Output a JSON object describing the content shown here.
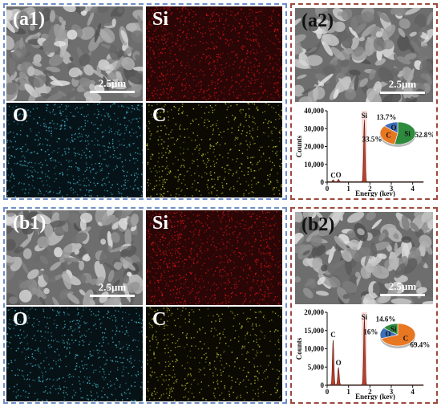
{
  "panels": {
    "a1": {
      "label": "(a1)",
      "scale": "2.5μm"
    },
    "a1_si": {
      "label": "Si"
    },
    "a1_o": {
      "label": "O"
    },
    "a1_c": {
      "label": "C"
    },
    "a2": {
      "label": "(a2)",
      "scale": "2.5μm"
    },
    "b1": {
      "label": "(b1)",
      "scale": "2.5μm"
    },
    "b1_si": {
      "label": "Si"
    },
    "b1_o": {
      "label": "O"
    },
    "b1_c": {
      "label": "C"
    },
    "b2": {
      "label": "(b2)",
      "scale": "2.5μm"
    }
  },
  "colors": {
    "si_map": "#d2141a",
    "o_map": "#44b8c8",
    "c_map": "#c8c832",
    "spectrum_fill": "#b8402e",
    "spectrum_band": "#f0b9b0",
    "pie_c": "#e87722",
    "pie_si": "#2e8b3e",
    "pie_o": "#3f6fb8"
  },
  "chart_data": [
    {
      "type": "area",
      "xlabel": "Energy (kev)",
      "ylabel": "Counts",
      "xlim": [
        0,
        4.5
      ],
      "ylim": [
        0,
        45000
      ],
      "x_ticks": [
        "0",
        "1",
        "2",
        "3",
        "4"
      ],
      "y_ticks": [
        "0",
        "10,000",
        "20,000",
        "30,000",
        "40,000"
      ],
      "peaks": [
        {
          "element": "C",
          "energy": 0.28,
          "counts": 1200
        },
        {
          "element": "O",
          "energy": 0.53,
          "counts": 1500
        },
        {
          "element": "Si",
          "energy": 1.74,
          "counts": 39000
        }
      ],
      "pie": {
        "slices": [
          {
            "name": "Si",
            "value": 52.8,
            "label": "52.8%"
          },
          {
            "name": "C",
            "value": 33.5,
            "label": "33.5%"
          },
          {
            "name": "O",
            "value": 13.7,
            "label": "13.7%"
          }
        ]
      }
    },
    {
      "type": "area",
      "xlabel": "Energy (kev)",
      "ylabel": "Counts",
      "xlim": [
        0,
        4.5
      ],
      "ylim": [
        0,
        20000
      ],
      "x_ticks": [
        "0",
        "1",
        "2",
        "3",
        "4"
      ],
      "y_ticks": [
        "0",
        "5,000",
        "10,000",
        "15,000",
        "20,000"
      ],
      "peaks": [
        {
          "element": "C",
          "energy": 0.28,
          "counts": 12500
        },
        {
          "element": "O",
          "energy": 0.53,
          "counts": 4800
        },
        {
          "element": "Si",
          "energy": 1.74,
          "counts": 18500
        }
      ],
      "pie": {
        "slices": [
          {
            "name": "C",
            "value": 69.4,
            "label": "69.4%"
          },
          {
            "name": "O",
            "value": 16.0,
            "label": "16%"
          },
          {
            "name": "Si",
            "value": 14.6,
            "label": "14.6%"
          }
        ]
      }
    }
  ]
}
